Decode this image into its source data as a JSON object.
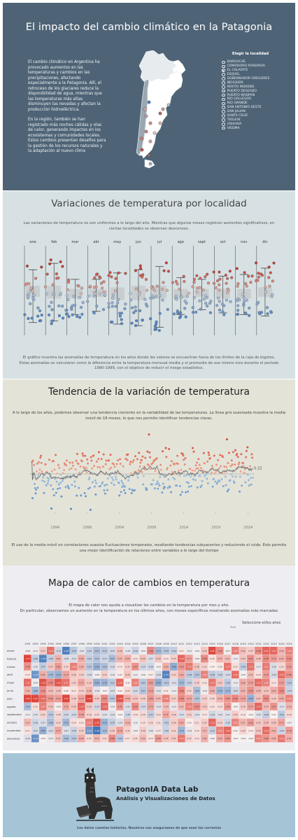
{
  "hero": {
    "title": "El impacto del cambio climático en la Patagonia",
    "paragraph1": "El cambio climático en Argentina ha provocado aumentos en las temperaturas y cambios en las precipitaciones, afectando especialmente a la Patagonia. Allí, el retroceso de los glaciares reduce la disponibilidad de agua, mientras que las temperaturas más altas disminuyen las nevadas y afectan la producción hidroeléctrica.",
    "paragraph2": "En la región, también se han registrado más noches cálidas y olas de calor, generando impactos en los ecosistemas y comunidades locales. Estos cambios presentan desafíos para la gestión de los recursos naturales y la adaptación al nuevo clima",
    "selector_title": "Elegir la localidad",
    "selected_index": 2,
    "locations": [
      "BARILOCHE",
      "COMODORO RIVADAVIA",
      "EL CALAFATE",
      "ESQUEL",
      "GOBERNADOR GREGORES",
      "NEUQUEN",
      "PERITO MORENO",
      "PUERTO DESEADO",
      "PUERTO MADRYN",
      "RIO GALLEGOS",
      "RIO GRANDE",
      "SAN ANTONIO OESTE",
      "SAN JULIAN",
      "SANTA CRUZ",
      "TRELEW",
      "USHUAIA",
      "VIEDMA"
    ]
  },
  "variations": {
    "title": "Variaciones de temperatura por localidad",
    "intro": "Las variaciones de temperatura no son uniformes a lo largo del año. Mientras que algunos meses registran aumentos significativos, en ciertas localidades se observan descensos.",
    "footer1": "El gráfico muestra las anomalías de temperatura en los años donde los valores se encuentran fuera de los límites de la caja de bigotes.",
    "footer2": "Estas anomalías se calcularon como la diferencia entre la temperatura mensual media y el promedio de ese mismo mes durante el período 1990-1999, con el objetivo de reducir el riesgo estadístico."
  },
  "trend": {
    "title": "Tendencia de la variación de temperatura",
    "intro": "A lo largo de los años, podemos observar una tendencia creciente en la variabilidad de las temperaturas. La línea gris suavizada muestra la media móvil de 18 meses, lo que nos permite identificar tendencias claras.",
    "footer": "El uso de la media móvil en correlaciones suaviza fluctuaciones temporales, resaltando tendencias subyacentes y reduciendo el ruido. Esto permite una mejor identificación de relaciones entre variables a lo largo del tiempo"
  },
  "heatmap": {
    "title": "Mapa de calor de cambios en temperatura",
    "intro1": "El mapa de calor nos ayuda a visualizar los cambios en la temperatura por mes y año.",
    "intro2": "En particular, observamos un aumento en la temperatura en los últimos años, con meses específicos mostrando anomalías más marcadas",
    "select_label": "Seleccione el/los años",
    "select_value": "Todo"
  },
  "footer": {
    "brand": "PatagonIA Data Lab",
    "subtitle": "Análisis y Visualizaciones de Datos",
    "tagline": "Los datos cuentan historias. Nosotros nos aseguramos de que sean las correctas"
  },
  "colors": {
    "hero_bg": "#4e6476",
    "warm": "#d6493f",
    "cool": "#4f86bd",
    "box": "#bfc6c9"
  },
  "chart_data": [
    {
      "type": "box",
      "categories": [
        "ene",
        "feb",
        "mar",
        "abr",
        "may",
        "jun",
        "jul",
        "ago",
        "sept",
        "oct",
        "nov",
        "dic"
      ],
      "ylim": [
        -2.6,
        3.0
      ],
      "series": [
        {
          "values": [
            {
              "q1": -0.2,
              "q3": 0.5,
              "lo": -1.8,
              "hi": 1.5
            },
            {
              "q1": -0.3,
              "q3": 0.5,
              "lo": -1.7,
              "hi": 1.9
            },
            {
              "q1": -0.3,
              "q3": 0.3,
              "lo": -1.3,
              "hi": 0.9
            },
            {
              "q1": -0.2,
              "q3": 0.3,
              "lo": -1.1,
              "hi": 0.9
            },
            {
              "q1": -0.4,
              "q3": 0.4,
              "lo": -1.9,
              "hi": 1.3
            },
            {
              "q1": -0.4,
              "q3": 0.5,
              "lo": -2.0,
              "hi": 1.5
            },
            {
              "q1": -0.3,
              "q3": 0.5,
              "lo": -2.1,
              "hi": 1.7
            },
            {
              "q1": -0.3,
              "q3": 0.3,
              "lo": -1.3,
              "hi": 1.0
            },
            {
              "q1": -0.2,
              "q3": 0.3,
              "lo": -1.0,
              "hi": 0.9
            },
            {
              "q1": -0.3,
              "q3": 0.3,
              "lo": -1.2,
              "hi": 1.1
            },
            {
              "q1": -0.3,
              "q3": 0.3,
              "lo": -1.3,
              "hi": 1.2
            },
            {
              "q1": -0.2,
              "q3": 0.4,
              "lo": -1.4,
              "hi": 1.6
            }
          ]
        }
      ]
    },
    {
      "type": "scatter",
      "x_ticks": [
        "1994",
        "1999",
        "2004",
        "2009",
        "2014",
        "2019",
        "2024"
      ],
      "xlim": [
        1990,
        2025
      ],
      "ylim": [
        -3,
        3
      ],
      "last_value_label": "0.22"
    },
    {
      "type": "heatmap",
      "x": [
        "1991",
        "1992",
        "1993",
        "1994",
        "1995",
        "1996",
        "1997",
        "1998",
        "1999",
        "2000",
        "2001",
        "2002",
        "2003",
        "2004",
        "2005",
        "2006",
        "2007",
        "2008",
        "2009",
        "2010",
        "2011",
        "2012",
        "2013",
        "2014",
        "2015",
        "2016",
        "2017",
        "2018",
        "2019",
        "2020",
        "2021",
        "2022",
        "2023",
        "2024",
        "2025"
      ],
      "y": [
        "enero",
        "febrero",
        "marzo",
        "abril",
        "mayo",
        "junio",
        "julio",
        "agosto",
        "septiembre",
        "octubre",
        "noviembre",
        "diciembre"
      ],
      "values": [
        [
          -0.08,
          -0.11,
          0.37,
          1.19,
          -0.35,
          -1.38,
          -0.53,
          -0.2,
          -0.42,
          -0.63,
          -0.51,
          -0.35,
          0.46,
          -0.18,
          -0.4,
          -0.09,
          0.98,
          -0.71,
          -0.55,
          -0.44,
          0.11,
          -0.12,
          -0.06,
          0.4,
          1.56,
          0.93,
          -0.07,
          1.07,
          0.51,
          0.35,
          0.96,
          1.31,
          1.27,
          0.56,
          1.04
        ],
        [
          1.7,
          -0.46,
          -1.36,
          -0.46,
          0.61,
          -0.28,
          -0.27,
          0.65,
          -0.44,
          -0.57,
          -0.37,
          -0.67,
          0.57,
          0.63,
          0.15,
          0.45,
          -0.27,
          0.43,
          0.14,
          0.33,
          1.3,
          0.77,
          -0.08,
          0.98,
          0.18,
          0.57,
          0.51,
          -0.11,
          0.44,
          0.91,
          0.46,
          0.96,
          0.79,
          0.63,
          0.94
        ],
        [
          0.89,
          -0.2,
          -0.47,
          0.42,
          0.81,
          0.29,
          1.06,
          0.6,
          -0.53,
          -0.81,
          -0.63,
          -0.3,
          0.14,
          0.35,
          0.87,
          -0.34,
          -0.36,
          -0.05,
          0.64,
          -0.86,
          0.85,
          1.12,
          0.46,
          0.31,
          0.04,
          0.09,
          1.17,
          0.19,
          -0.48,
          1.19,
          -0.17,
          1.11,
          -0.26,
          0.25,
          0.81
        ],
        [
          0.13,
          -1.14,
          0.65,
          -0.7,
          -0.79,
          0.73,
          0.4,
          0.34,
          -0.28,
          -0.06,
          0.34,
          -0.16,
          0.07,
          0.43,
          -0.11,
          -0.06,
          0.07,
          -0.29,
          -1.35,
          0.32,
          0.64,
          -0.48,
          -0.57,
          1.03,
          -0.49,
          -0.4,
          -0.29,
          1.22,
          -0.05,
          0.51,
          0.19,
          0.79,
          -0.3,
          1.23,
          0.88
        ],
        [
          1.25,
          -0.09,
          1.49,
          0.99,
          1.45,
          1.17,
          0.35,
          0.71,
          0.39,
          -0.83,
          -0.76,
          -0.51,
          1.29,
          0.06,
          1.05,
          -0.53,
          0.82,
          -0.85,
          -0.53,
          -0.25,
          -0.72,
          -0.45,
          0.34,
          0.16,
          1.14,
          0.41,
          -0.48,
          -0.13,
          0.66,
          0.76,
          1.24,
          1.06,
          0.17,
          0.79,
          -0.53
        ],
        [
          0.56,
          -0.68,
          0.9,
          0.5,
          0.46,
          0.06,
          0.17,
          0.35,
          0.58,
          -0.18,
          -0.02,
          -0.27,
          0.04,
          0.24,
          -0.31,
          -0.57,
          0.79,
          -0.22,
          0.11,
          -0.12,
          0.98,
          0.31,
          -0.66,
          -0.09,
          0.65,
          -0.75,
          -0.73,
          -0.35,
          0.61,
          0.9,
          0.58,
          0.44,
          0.63,
          0.97,
          -0.39
        ],
        [
          1.99,
          1.61,
          1.25,
          0.86,
          0.79,
          1.87,
          0.38,
          0.74,
          1.62,
          0.39,
          0.97,
          -0.54,
          1.46,
          0.64,
          0.43,
          0.36,
          0.84,
          0.55,
          1.06,
          0.37,
          0.96,
          0.73,
          -0.57,
          0.34,
          0.26,
          0.59,
          0.86,
          0.99,
          0.76,
          -0.81,
          0.47,
          0.97,
          0.4,
          0.65,
          1.03
        ],
        [
          -0.64,
          0.18,
          1.07,
          0.45,
          -0.06,
          0.71,
          0.44,
          1.34,
          0.4,
          -0.34,
          1.28,
          -0.09,
          0.81,
          -0.25,
          0.94,
          -0.34,
          0.74,
          -0.24,
          0.5,
          -0.15,
          0.53,
          1.04,
          0.94,
          0.42,
          0.18,
          0.2,
          0.84,
          -0.05,
          0.39,
          0.74,
          1.29,
          0.54,
          0.87,
          -0.22,
          0.55
        ],
        [
          -0.11,
          -0.23,
          0.31,
          -0.52,
          0.28,
          -0.35,
          -0.34,
          0.78,
          0.3,
          0.25,
          -0.22,
          -0.25,
          -0.02,
          -0.36,
          0.18,
          0.26,
          -0.47,
          0.23,
          0.71,
          0.36,
          -0.27,
          0.34,
          -0.24,
          0.13,
          -0.34,
          -0.24,
          -0.21,
          0.35,
          0.14,
          -0.03,
          -0.23,
          -0.46,
          0.01,
          -0.51,
          0.25
        ],
        [
          0.52,
          -0.38,
          -0.27,
          -0.66,
          0.32,
          -0.73,
          0.2,
          0.16,
          1.07,
          1.49,
          -0.76,
          -0.45,
          -0.24,
          0.59,
          -0.1,
          0.2,
          0.26,
          0.21,
          -0.45,
          0.36,
          0.67,
          0.05,
          0.21,
          0.35,
          1.29,
          0.34,
          -0.36,
          1.01,
          0.57,
          0.82,
          0.42,
          0.49,
          0.46,
          0.72,
          -0.07
        ],
        [
          0.17,
          -0.32,
          -0.82,
          -0.31,
          0.71,
          -0.23,
          -0.39,
          0.34,
          -1.07,
          -1.49,
          -0.67,
          0.39,
          0.74,
          0.31,
          -0.09,
          0.36,
          -0.2,
          0.15,
          -0.4,
          0.31,
          -0.74,
          -0.16,
          0.16,
          0.57,
          -0.44,
          1.03,
          1.28,
          0.04,
          0.3,
          0.1,
          0.44,
          1.24,
          0.61,
          -0.36,
          0.79
        ],
        [
          -0.24,
          -1.19,
          -0.02,
          -0.13,
          0.41,
          -0.64,
          -0.53,
          0.64,
          0.22,
          0.55,
          0.27,
          0.96,
          -0.54,
          0.17,
          0.25,
          0.52,
          0.15,
          0.83,
          0.45,
          0.41,
          1.13,
          0.31,
          0.19,
          0.61,
          -0.06,
          0.63,
          0.85,
          -0.03,
          -0.04,
          -0.03,
          1.03,
          0.88,
          0.61,
          1.14,
          0.61
        ]
      ]
    }
  ]
}
